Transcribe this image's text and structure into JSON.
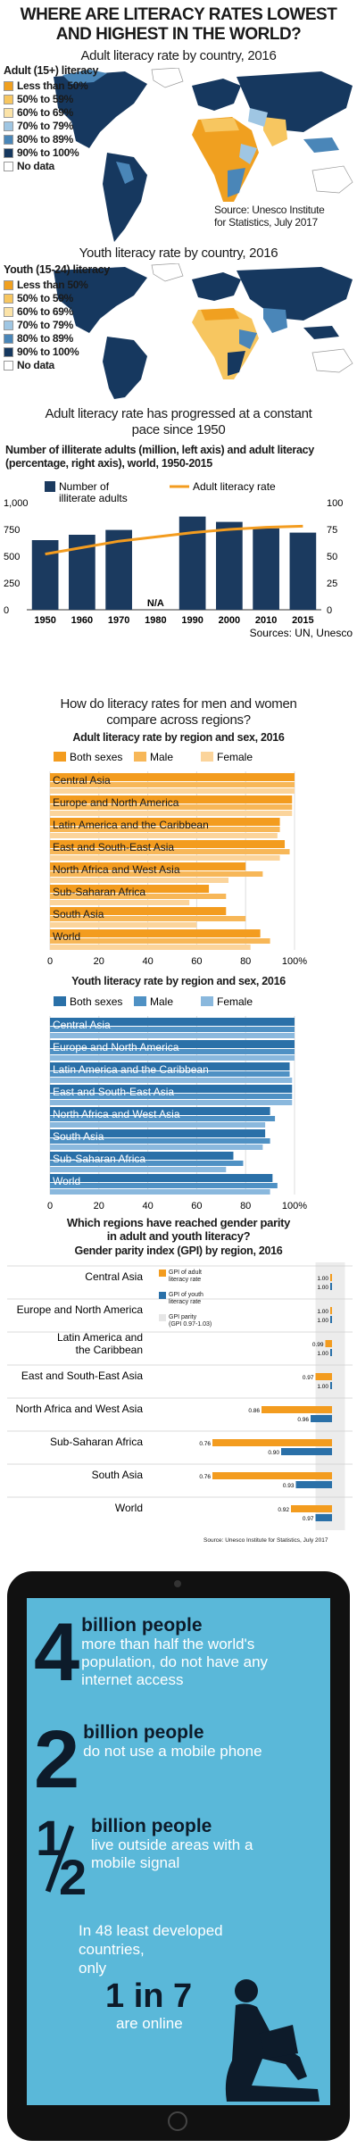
{
  "header": {
    "title_line1": "WHERE ARE LITERACY RATES LOWEST",
    "title_line2": "AND HIGHEST IN THE WORLD?"
  },
  "adult_map": {
    "title": "Adult literacy rate by country, 2016",
    "legend_title": "Adult (15+) literacy",
    "legend": [
      {
        "label": "Less than 50%",
        "color": "#f0a020"
      },
      {
        "label": "50% to 59%",
        "color": "#f7c660"
      },
      {
        "label": "60% to 69%",
        "color": "#fbe3a8"
      },
      {
        "label": "70% to 79%",
        "color": "#9fc6e3"
      },
      {
        "label": "80% to 89%",
        "color": "#4a86b8"
      },
      {
        "label": "90% to 100%",
        "color": "#16385f"
      },
      {
        "label": "No data",
        "color": "#ffffff"
      }
    ],
    "source_line1": "Source: Unesco Institute",
    "source_line2": "for Statistics, July 2017"
  },
  "youth_map": {
    "title": "Youth literacy rate by country, 2016",
    "legend_title": "Youth (15-24) literacy",
    "legend": [
      {
        "label": "Less than 50%",
        "color": "#f0a020"
      },
      {
        "label": "50% to 59%",
        "color": "#f7c660"
      },
      {
        "label": "60% to 69%",
        "color": "#fbe3a8"
      },
      {
        "label": "70% to 79%",
        "color": "#9fc6e3"
      },
      {
        "label": "80% to 89%",
        "color": "#4a86b8"
      },
      {
        "label": "90% to 100%",
        "color": "#16385f"
      },
      {
        "label": "No data",
        "color": "#ffffff"
      }
    ]
  },
  "progress": {
    "heading_line1": "Adult literacy rate has progressed at a constant",
    "heading_line2": "pace since 1950",
    "subheading_line1": "Number of illiterate adults (million, left axis) and adult literacy",
    "subheading_line2": "(percentage, right axis), world, 1950-2015",
    "legend_bar_line1": "Number of",
    "legend_bar_line2": "illiterate adults",
    "legend_line": "Adult literacy rate",
    "na_label": "N/A",
    "source": "Sources: UN, Unesco"
  },
  "gender": {
    "heading_line1": "How do literacy rates for men and women",
    "heading_line2": "compare across regions?",
    "adult_title": "Adult literacy rate by region and sex, 2016",
    "youth_title": "Youth literacy rate by region and sex, 2016",
    "legend": [
      "Both sexes",
      "Male",
      "Female"
    ]
  },
  "parity": {
    "heading_line1": "Which regions have reached gender parity",
    "heading_line2": "in adult and youth literacy?",
    "subtitle": "Gender parity index (GPI) by region, 2016",
    "legend_adult_line1": "GPI of adult",
    "legend_adult_line2": "literacy rate",
    "legend_youth_line1": "GPI of youth",
    "legend_youth_line2": "literacy rate",
    "legend_band_line1": "GPI parity",
    "legend_band_line2": "(GPI 0.97-1.03)",
    "source": "Source: Unesco Institute for Statistics, July 2017"
  },
  "tablet": {
    "fact1_big": "4",
    "fact1_title": "billion people",
    "fact1_l1": "more than half the world's",
    "fact1_l2": "population, do not have any",
    "fact1_l3": "internet access",
    "fact2_big": "2",
    "fact2_title": "billion people",
    "fact2_l1": "do not use a mobile phone",
    "fact3_big_num": "1",
    "fact3_big_den": "2",
    "fact3_title": "billion people",
    "fact3_l1": "live outside areas with a",
    "fact3_l2": "mobile signal",
    "fact4_l1": "In 48 least developed",
    "fact4_l2": "countries,",
    "fact4_l3": "only",
    "fact4_big": "1 in 7",
    "fact4_l4": "are online"
  },
  "colors": {
    "orange": "#f39c1f",
    "orange_mid": "#f7b758",
    "orange_light": "#fbd49b",
    "navy": "#1b3a5f",
    "blue": "#2a70a8",
    "blue_mid": "#4f91c4",
    "blue_light": "#8ab8dd",
    "tablet_screen": "#5ab8d9"
  },
  "chart_data": [
    {
      "type": "bar",
      "id": "illiterate_adults_vs_rate",
      "categories": [
        "1950",
        "1960",
        "1970",
        "1980",
        "1990",
        "2000",
        "2010",
        "2015"
      ],
      "series": [
        {
          "name": "Number of illiterate adults",
          "axis": "left",
          "values": [
            650,
            700,
            745,
            null,
            870,
            820,
            760,
            720
          ]
        },
        {
          "name": "Adult literacy rate",
          "axis": "right",
          "chart": "line",
          "values": [
            52,
            58,
            64,
            null,
            72,
            75,
            77,
            78
          ]
        }
      ],
      "ylim_left": [
        0,
        1000
      ],
      "yticks_left": [
        0,
        250,
        500,
        750,
        "1,000"
      ],
      "ylim_right": [
        0,
        100
      ],
      "yticks_right": [
        0,
        25,
        50,
        75,
        100
      ]
    },
    {
      "type": "bar",
      "id": "adult_by_region_sex",
      "orientation": "horizontal",
      "categories": [
        "Central Asia",
        "Europe and North America",
        "Latin America and the Caribbean",
        "East and South-East Asia",
        "North Africa and West Asia",
        "Sub-Saharan Africa",
        "South Asia",
        "World"
      ],
      "series": [
        {
          "name": "Both sexes",
          "values": [
            100,
            99,
            94,
            96,
            80,
            65,
            72,
            86
          ]
        },
        {
          "name": "Male",
          "values": [
            100,
            99,
            94,
            98,
            87,
            72,
            80,
            90
          ]
        },
        {
          "name": "Female",
          "values": [
            100,
            99,
            93,
            94,
            73,
            57,
            60,
            82
          ]
        }
      ],
      "xlim": [
        0,
        100
      ],
      "xticks": [
        "0",
        "20",
        "40",
        "60",
        "80",
        "100%"
      ]
    },
    {
      "type": "bar",
      "id": "youth_by_region_sex",
      "orientation": "horizontal",
      "categories": [
        "Central Asia",
        "Europe and North America",
        "Latin America and the Caribbean",
        "East and South-East Asia",
        "North Africa and West Asia",
        "South Asia",
        "Sub-Saharan Africa",
        "World"
      ],
      "series": [
        {
          "name": "Both sexes",
          "values": [
            100,
            100,
            98,
            99,
            90,
            88,
            75,
            91
          ]
        },
        {
          "name": "Male",
          "values": [
            100,
            100,
            98,
            99,
            92,
            90,
            79,
            93
          ]
        },
        {
          "name": "Female",
          "values": [
            100,
            100,
            99,
            99,
            88,
            87,
            72,
            90
          ]
        }
      ],
      "xlim": [
        0,
        100
      ],
      "xticks": [
        "0",
        "20",
        "40",
        "60",
        "80",
        "100%"
      ]
    },
    {
      "type": "bar",
      "id": "gender_parity_index",
      "orientation": "horizontal",
      "categories": [
        "Central Asia",
        "Europe and North America",
        "Latin America and the Caribbean",
        "East and South-East Asia",
        "North Africa and West Asia",
        "Sub-Saharan Africa",
        "South Asia",
        "World"
      ],
      "series": [
        {
          "name": "GPI of adult literacy rate",
          "values": [
            1.0,
            1.0,
            0.99,
            0.97,
            0.86,
            0.76,
            0.76,
            0.92
          ]
        },
        {
          "name": "GPI of youth literacy rate",
          "values": [
            1.0,
            1.0,
            1.0,
            1.0,
            0.96,
            0.9,
            0.93,
            0.97
          ]
        }
      ],
      "labels_adult": [
        "1.00",
        "1.00",
        "0.99",
        "0.97",
        "0.86",
        "0.76",
        "0.76",
        "0.92"
      ],
      "labels_youth": [
        "1.00",
        "1.00",
        "1.00",
        "1.00",
        "0.96",
        "0.90",
        "0.93",
        "0.97"
      ]
    }
  ]
}
